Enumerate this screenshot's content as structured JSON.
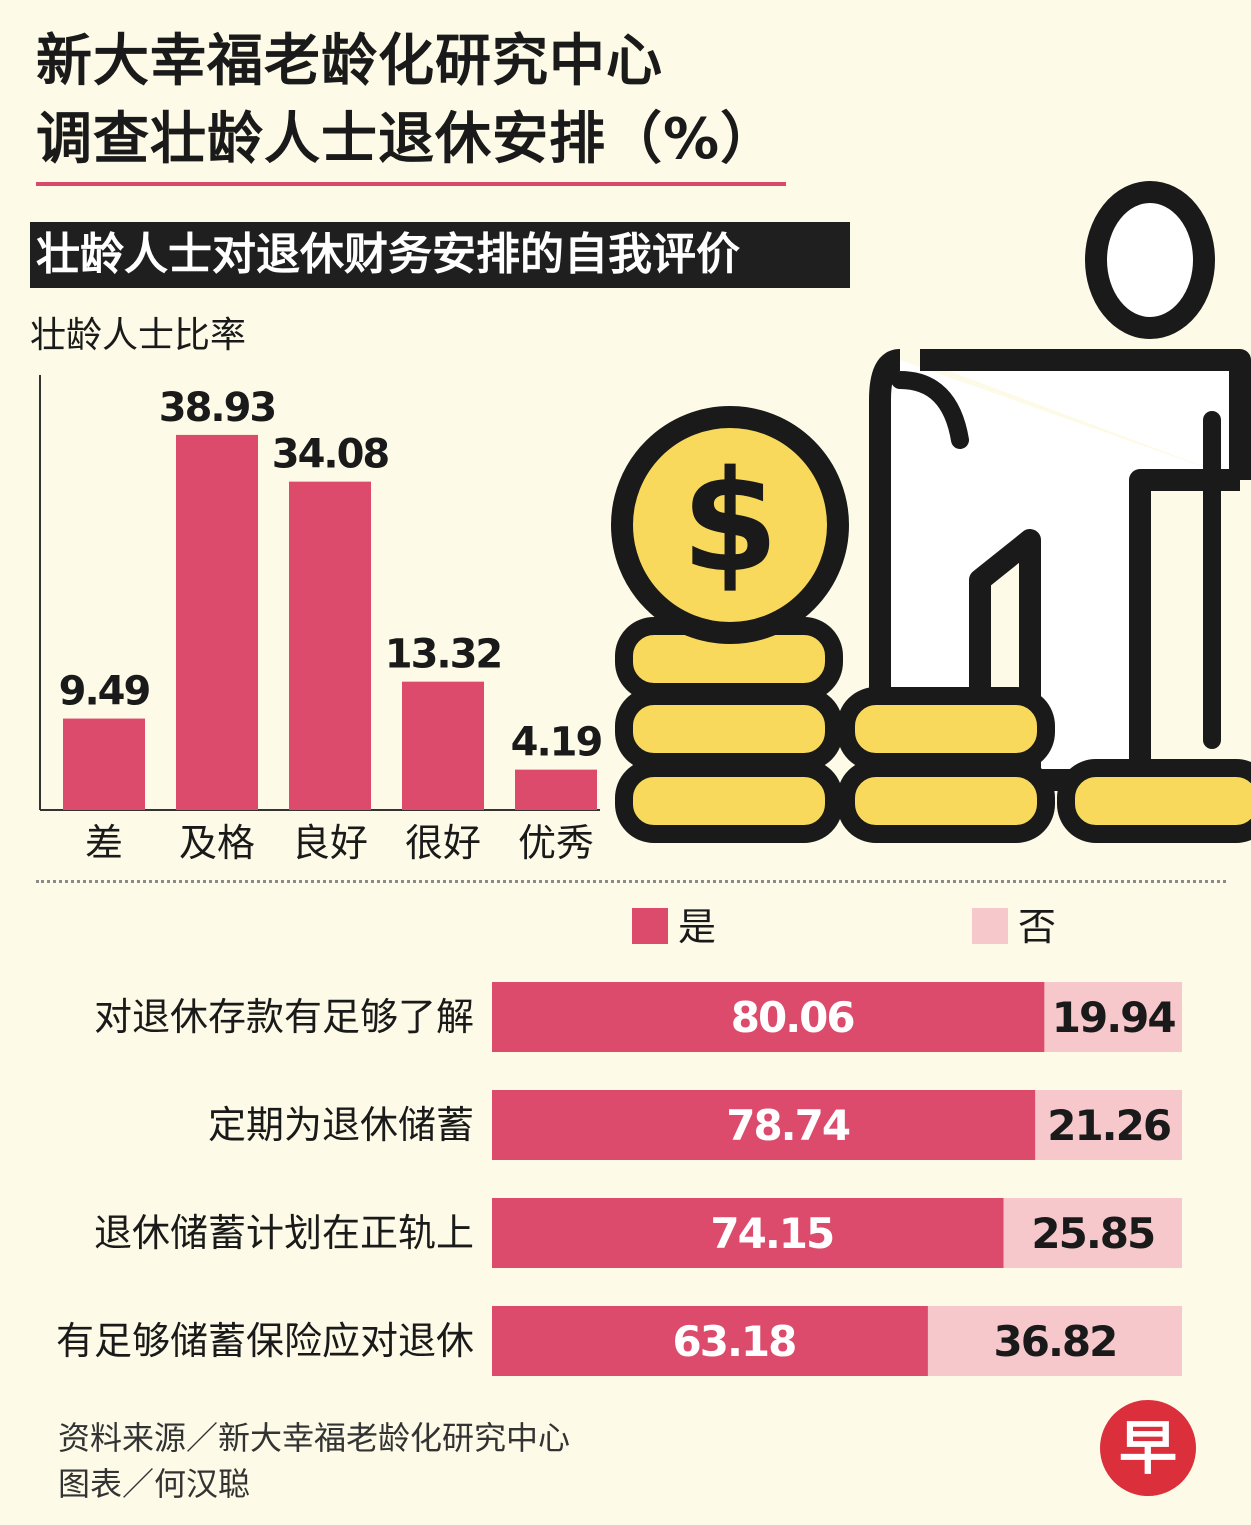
{
  "title_line1": "新大幸福老龄化研究中心",
  "title_line2": "调查壮龄人士退休安排（%）",
  "section_title": "壮龄人士对退休财务安排的自我评价",
  "legend": {
    "yes": "是",
    "no": "否"
  },
  "footer": {
    "source": "资料来源／新大幸福老龄化研究中心",
    "credit": "图表／何汉聪"
  },
  "logo_text": "早",
  "colors": {
    "primary": "#dc4a6c",
    "secondary": "#f6c8cb",
    "coin": "#f9d95b",
    "background": "#fdfbe8"
  },
  "chart_data": [
    {
      "type": "bar",
      "ylabel": "壮龄人士比率",
      "categories": [
        "差",
        "及格",
        "良好",
        "很好",
        "优秀"
      ],
      "values": [
        9.49,
        38.93,
        34.08,
        13.32,
        4.19
      ],
      "ylim": [
        0,
        40
      ],
      "grid": false
    },
    {
      "type": "bar",
      "orientation": "horizontal",
      "stacked": true,
      "categories": [
        "对退休存款有足够了解",
        "定期为退休储蓄",
        "退休储蓄计划在正轨上",
        "有足够储蓄保险应对退休"
      ],
      "series": [
        {
          "name": "是",
          "values": [
            80.06,
            78.74,
            74.15,
            63.18
          ]
        },
        {
          "name": "否",
          "values": [
            19.94,
            21.26,
            25.85,
            36.82
          ]
        }
      ],
      "xlim": [
        0,
        100
      ]
    }
  ]
}
